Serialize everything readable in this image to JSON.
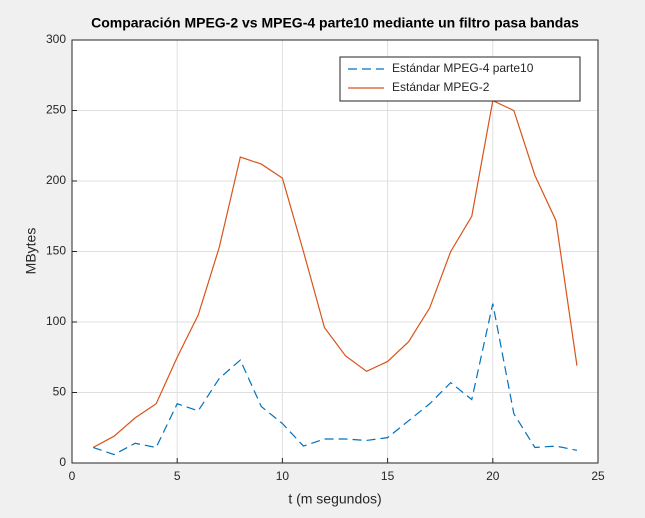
{
  "chart_data": {
    "type": "line",
    "title": "Comparación MPEG-2 vs MPEG-4 parte10 mediante un filtro pasa bandas",
    "xlabel": "t (m segundos)",
    "ylabel": "MBytes",
    "x": [
      1,
      2,
      3,
      4,
      5,
      6,
      7,
      8,
      9,
      10,
      11,
      12,
      13,
      14,
      15,
      16,
      17,
      18,
      19,
      20,
      21,
      22,
      23,
      24
    ],
    "series": [
      {
        "name": "Estándar MPEG-4 parte10",
        "color": "#0072bd",
        "dash": "dashed",
        "values": [
          11,
          6,
          14,
          11,
          42,
          37,
          60,
          73,
          40,
          28,
          12,
          17,
          17,
          16,
          18,
          30,
          42,
          57,
          45,
          113,
          35,
          11,
          12,
          9
        ]
      },
      {
        "name": "Estándar MPEG-2",
        "color": "#d95319",
        "dash": "solid",
        "values": [
          11,
          19,
          32,
          42,
          75,
          105,
          153,
          217,
          212,
          202,
          150,
          96,
          76,
          65,
          72,
          86,
          110,
          150,
          175,
          257,
          250,
          204,
          172,
          69
        ]
      }
    ],
    "xlim": [
      0,
      25
    ],
    "xticks": [
      0,
      5,
      10,
      15,
      20,
      25
    ],
    "ylim": [
      0,
      300
    ],
    "yticks": [
      0,
      50,
      100,
      150,
      200,
      250,
      300
    ],
    "grid": true,
    "legend": "northeast"
  }
}
